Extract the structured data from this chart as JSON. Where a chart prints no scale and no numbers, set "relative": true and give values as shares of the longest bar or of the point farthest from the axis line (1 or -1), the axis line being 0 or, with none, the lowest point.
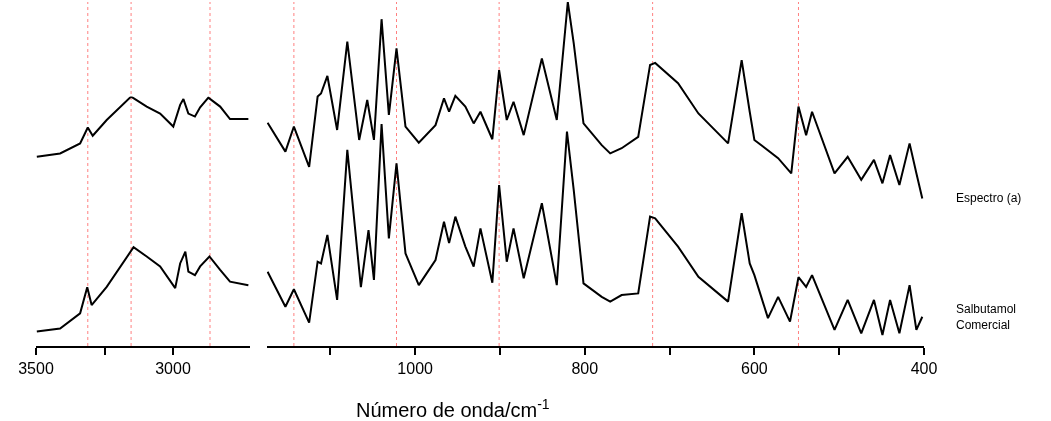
{
  "chart_data": [
    {
      "type": "line",
      "relative": true,
      "xlim": [
        3500,
        2720
      ],
      "xticks": [
        3500,
        {
          "value": 3250,
          "label": null
        },
        3000
      ],
      "grid": false,
      "marker": "none",
      "line_style": "solid",
      "ref_lines": [
        {
          "axis": "x",
          "value": 3311,
          "color": "#ff8080",
          "line_style": "dotted"
        },
        {
          "axis": "x",
          "value": 3153,
          "color": "#ff8080",
          "line_style": "dotted"
        },
        {
          "axis": "x",
          "value": 2865,
          "color": "#ff8080",
          "line_style": "dotted"
        }
      ],
      "series": [
        {
          "color": "#000000",
          "x": [
            3497,
            3412,
            3339,
            3311,
            3293,
            3242,
            3153,
            3096,
            3047,
            2999,
            2974,
            2962,
            2944,
            2920,
            2901,
            2871,
            2828,
            2792,
            2725
          ],
          "values": [
            0.759,
            0.772,
            0.812,
            0.876,
            0.843,
            0.906,
            1.0,
            0.96,
            0.932,
            0.88,
            0.967,
            0.99,
            0.932,
            0.92,
            0.957,
            0.996,
            0.96,
            0.91,
            0.91
          ]
        },
        {
          "color": "#000000",
          "x": [
            3497,
            3412,
            3339,
            3313,
            3297,
            3242,
            3144,
            3096,
            3047,
            2992,
            2974,
            2955,
            2944,
            2920,
            2901,
            2867,
            2828,
            2792,
            2725
          ],
          "values": [
            0.058,
            0.07,
            0.131,
            0.236,
            0.164,
            0.237,
            0.396,
            0.359,
            0.319,
            0.232,
            0.331,
            0.378,
            0.298,
            0.284,
            0.319,
            0.359,
            0.305,
            0.258,
            0.244
          ]
        }
      ]
    },
    {
      "type": "line",
      "relative": true,
      "xlim": [
        1175,
        400
      ],
      "xticks": [
        {
          "value": 1100,
          "label": null
        },
        1000,
        {
          "value": 900,
          "label": null
        },
        800,
        {
          "value": 700,
          "label": null
        },
        600,
        {
          "value": 500,
          "label": null
        },
        400
      ],
      "grid": false,
      "marker": "none",
      "line_style": "solid",
      "xlabel": "Número de onda/cm$^{-1}$",
      "ref_lines": [
        {
          "axis": "x",
          "value": 1143,
          "color": "#ff8080",
          "line_style": "dotted"
        },
        {
          "axis": "x",
          "value": 1022,
          "color": "#ff8080",
          "line_style": "dotted"
        },
        {
          "axis": "x",
          "value": 901,
          "color": "#ff8080",
          "line_style": "dotted"
        },
        {
          "axis": "x",
          "value": 720,
          "color": "#ff8080",
          "line_style": "dotted"
        },
        {
          "axis": "x",
          "value": 548,
          "color": "#ff8080",
          "line_style": "dotted"
        }
      ],
      "series": [
        {
          "name": "Espectro (a)",
          "color": "#000000",
          "x": [
            1174,
            1153,
            1143,
            1125,
            1115,
            1111,
            1103.5,
            1092,
            1080,
            1066,
            1056.5,
            1048.6,
            1039.6,
            1031,
            1022,
            1011.4,
            995.7,
            976,
            966,
            960,
            952.6,
            940.8,
            931,
            923,
            909,
            901,
            892,
            884,
            872,
            850.6,
            833,
            820,
            813,
            801.5,
            780,
            770,
            756.5,
            737,
            723,
            717,
            690,
            666,
            631,
            615,
            605.5,
            600,
            572,
            556.5,
            548,
            539,
            532,
            505.5,
            490,
            474,
            459,
            449,
            440,
            429,
            417,
            409,
            402
          ],
          "values": [
            0.649,
            0.565,
            0.638,
            0.521,
            0.725,
            0.734,
            0.785,
            0.628,
            0.885,
            0.599,
            0.715,
            0.599,
            0.95,
            0.672,
            0.865,
            0.638,
            0.591,
            0.642,
            0.72,
            0.681,
            0.727,
            0.696,
            0.647,
            0.681,
            0.601,
            0.802,
            0.657,
            0.71,
            0.613,
            0.836,
            0.657,
            1.0,
            0.88,
            0.647,
            0.584,
            0.56,
            0.575,
            0.608,
            0.817,
            0.823,
            0.764,
            0.676,
            0.589,
            0.831,
            0.681,
            0.599,
            0.546,
            0.502,
            0.696,
            0.613,
            0.681,
            0.502,
            0.55,
            0.483,
            0.541,
            0.473,
            0.555,
            0.468,
            0.589,
            0.502,
            0.429
          ]
        },
        {
          "name": "Salbutamol\nComercial",
          "color": "#000000",
          "x": [
            1174,
            1153,
            1143,
            1125,
            1115,
            1111,
            1103.5,
            1092,
            1080,
            1064,
            1055,
            1048.6,
            1039.6,
            1031,
            1022,
            1011.4,
            995.7,
            976,
            966,
            960,
            952.6,
            940.8,
            931,
            923,
            909,
            901,
            892,
            884,
            872,
            850.6,
            833,
            821,
            813,
            801.5,
            780,
            770,
            756.5,
            737,
            723,
            717,
            690,
            666,
            631,
            615,
            605.5,
            600,
            584,
            572,
            558,
            548,
            539,
            532,
            505.5,
            490,
            474,
            459,
            449,
            440,
            429,
            417,
            409,
            402
          ],
          "values": [
            0.216,
            0.114,
            0.165,
            0.068,
            0.245,
            0.24,
            0.323,
            0.134,
            0.57,
            0.171,
            0.337,
            0.192,
            0.645,
            0.313,
            0.531,
            0.269,
            0.177,
            0.25,
            0.361,
            0.299,
            0.376,
            0.289,
            0.231,
            0.342,
            0.184,
            0.468,
            0.245,
            0.342,
            0.197,
            0.415,
            0.177,
            0.623,
            0.453,
            0.182,
            0.143,
            0.129,
            0.148,
            0.153,
            0.376,
            0.371,
            0.289,
            0.201,
            0.129,
            0.386,
            0.24,
            0.206,
            0.081,
            0.143,
            0.071,
            0.2,
            0.172,
            0.206,
            0.047,
            0.134,
            0.037,
            0.134,
            0.032,
            0.134,
            0.037,
            0.177,
            0.047,
            0.085
          ]
        }
      ]
    }
  ]
}
